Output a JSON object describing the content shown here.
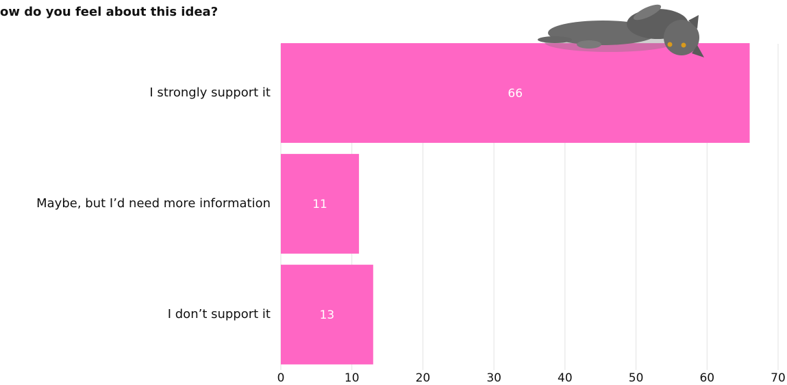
{
  "chart_data": {
    "type": "barh",
    "title": "ow do you feel about this idea?",
    "categories": [
      "I strongly support it",
      "Maybe, but I’d need more information",
      "I don’t support it"
    ],
    "values": [
      66,
      11,
      13
    ],
    "color": "#ff66c4",
    "xlim": [
      0,
      70
    ],
    "xticks": [
      0,
      10,
      20,
      30,
      40,
      50,
      60,
      70
    ],
    "grid": true
  }
}
